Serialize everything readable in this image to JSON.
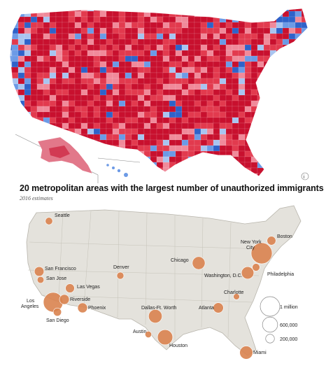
{
  "title": "20 metropolitan areas with the largest number of unauthorized immigrants",
  "subtitle": "2016 estimates",
  "colors": {
    "rep_dark": "#c8102e",
    "rep_mid": "#e23a4e",
    "rep_light": "#f08a9a",
    "dem_dark": "#2f62c9",
    "dem_mid": "#6c9ae6",
    "dem_light": "#a9c4f0",
    "land": "#e4e2dc",
    "bubble": "#d9834f"
  },
  "legend": [
    {
      "label": "1 million",
      "value": 1000000
    },
    {
      "label": "600,000",
      "value": 600000
    },
    {
      "label": "200,000",
      "value": 200000
    }
  ],
  "cities": [
    {
      "name": "Seattle",
      "label": "Seattle",
      "value": 140000
    },
    {
      "name": "San Francisco",
      "label": "San Francisco",
      "value": 240000
    },
    {
      "name": "San Jose",
      "label": "San Jose",
      "value": 120000
    },
    {
      "name": "Los Angeles",
      "label": "Los Angeles",
      "value": 1000000
    },
    {
      "name": "Riverside",
      "label": "Riverside",
      "value": 250000
    },
    {
      "name": "San Diego",
      "label": "San Diego",
      "value": 170000
    },
    {
      "name": "Las Vegas",
      "label": "Las Vegas",
      "value": 210000
    },
    {
      "name": "Phoenix",
      "label": "Phoenix",
      "value": 250000
    },
    {
      "name": "Denver",
      "label": "Denver",
      "value": 130000
    },
    {
      "name": "Dallas-Ft. Worth",
      "label": "Dallas-Ft. Worth",
      "value": 475000
    },
    {
      "name": "Austin",
      "label": "Austin",
      "value": 110000
    },
    {
      "name": "Houston",
      "label": "Houston",
      "value": 600000
    },
    {
      "name": "Chicago",
      "label": "Chicago",
      "value": 425000
    },
    {
      "name": "Atlanta",
      "label": "Atlanta",
      "value": 275000
    },
    {
      "name": "Charlotte",
      "label": "Charlotte",
      "value": 100000
    },
    {
      "name": "Miami",
      "label": "Miami",
      "value": 450000
    },
    {
      "name": "Washington, D.C.",
      "label": "Washington, D.C.",
      "value": 400000
    },
    {
      "name": "Philadelphia",
      "label": "Philadelphia",
      "value": 150000
    },
    {
      "name": "New York City",
      "label": "New York City",
      "value": 1150000
    },
    {
      "name": "Boston",
      "label": "Boston",
      "value": 200000
    }
  ]
}
